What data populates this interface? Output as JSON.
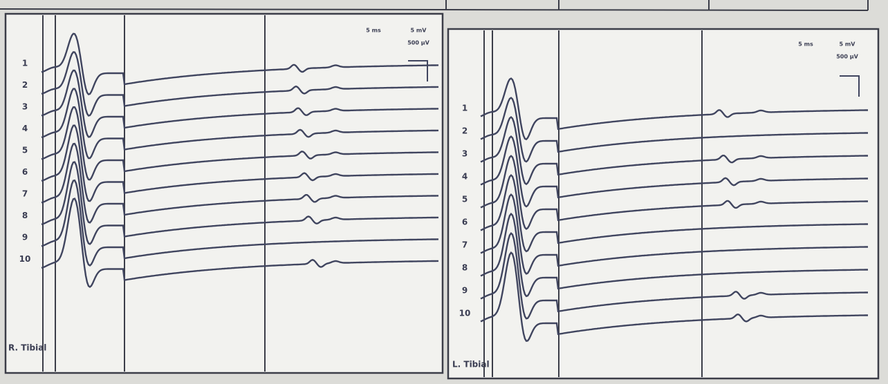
{
  "left_panel": {
    "label": "R. Tibial",
    "trace_numbers": [
      "1",
      "2",
      "3",
      "4",
      "5",
      "6",
      "7",
      "8",
      "9",
      "10"
    ],
    "time_scale": "5 ms",
    "amplitude_scales": [
      "5 mV",
      "500 µV"
    ]
  },
  "right_panel": {
    "label": "L. Tibial",
    "trace_numbers": [
      "1",
      "2",
      "3",
      "4",
      "5",
      "6",
      "7",
      "8",
      "9",
      "10"
    ],
    "time_scale": "5 ms",
    "amplitude_scales": [
      "5 mV",
      "500 µV"
    ]
  }
}
